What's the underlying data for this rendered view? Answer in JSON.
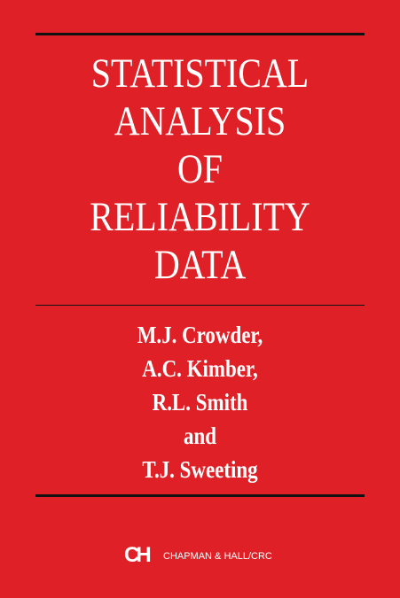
{
  "title": [
    "STATISTICAL",
    "ANALYSIS",
    "OF",
    "RELIABILITY",
    "DATA"
  ],
  "authors": [
    "M.J. Crowder,",
    "A.C. Kimber,",
    "R.L. Smith",
    "and",
    "T.J. Sweeting"
  ],
  "publisher": {
    "logo": "CH",
    "name": "CHAPMAN & HALL/CRC"
  }
}
